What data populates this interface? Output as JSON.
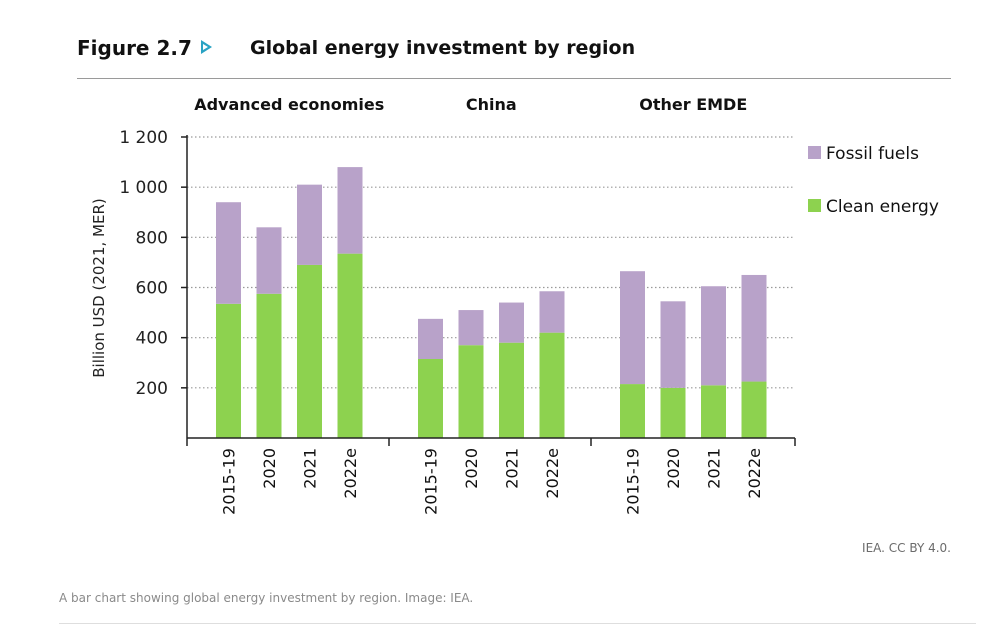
{
  "figure": {
    "number": "Figure 2.7",
    "title": "Global energy investment by region",
    "credit": "IEA. CC BY 4.0.",
    "caption": "A bar chart showing global energy investment by region. Image: IEA."
  },
  "colors": {
    "fossil": "#b8a2c9",
    "clean": "#8dd24f",
    "axis": "#222222",
    "grid": "#9a9a9a",
    "accent": "#2aa3c4"
  },
  "chart_data": {
    "type": "bar",
    "stacked": true,
    "ylabel": "Billion USD (2021, MER)",
    "ylim": [
      0,
      1200
    ],
    "yticks": [
      200,
      400,
      600,
      800,
      1000,
      1200
    ],
    "ytick_labels": [
      "200",
      "400",
      "600",
      "800",
      "1 000",
      "1 200"
    ],
    "grid": "horizontal dotted",
    "legend_position": "right",
    "legend": [
      "Fossil fuels",
      "Clean energy"
    ],
    "groups": [
      {
        "name": "Advanced economies",
        "categories": [
          "2015-19",
          "2020",
          "2021",
          "2022e"
        ],
        "clean": [
          535,
          575,
          690,
          735
        ],
        "fossil": [
          405,
          265,
          320,
          345
        ]
      },
      {
        "name": "China",
        "categories": [
          "2015-19",
          "2020",
          "2021",
          "2022e"
        ],
        "clean": [
          315,
          370,
          380,
          420
        ],
        "fossil": [
          160,
          140,
          160,
          165
        ]
      },
      {
        "name": "Other EMDE",
        "categories": [
          "2015-19",
          "2020",
          "2021",
          "2022e"
        ],
        "clean": [
          215,
          200,
          210,
          225
        ],
        "fossil": [
          450,
          345,
          395,
          425
        ]
      }
    ]
  }
}
